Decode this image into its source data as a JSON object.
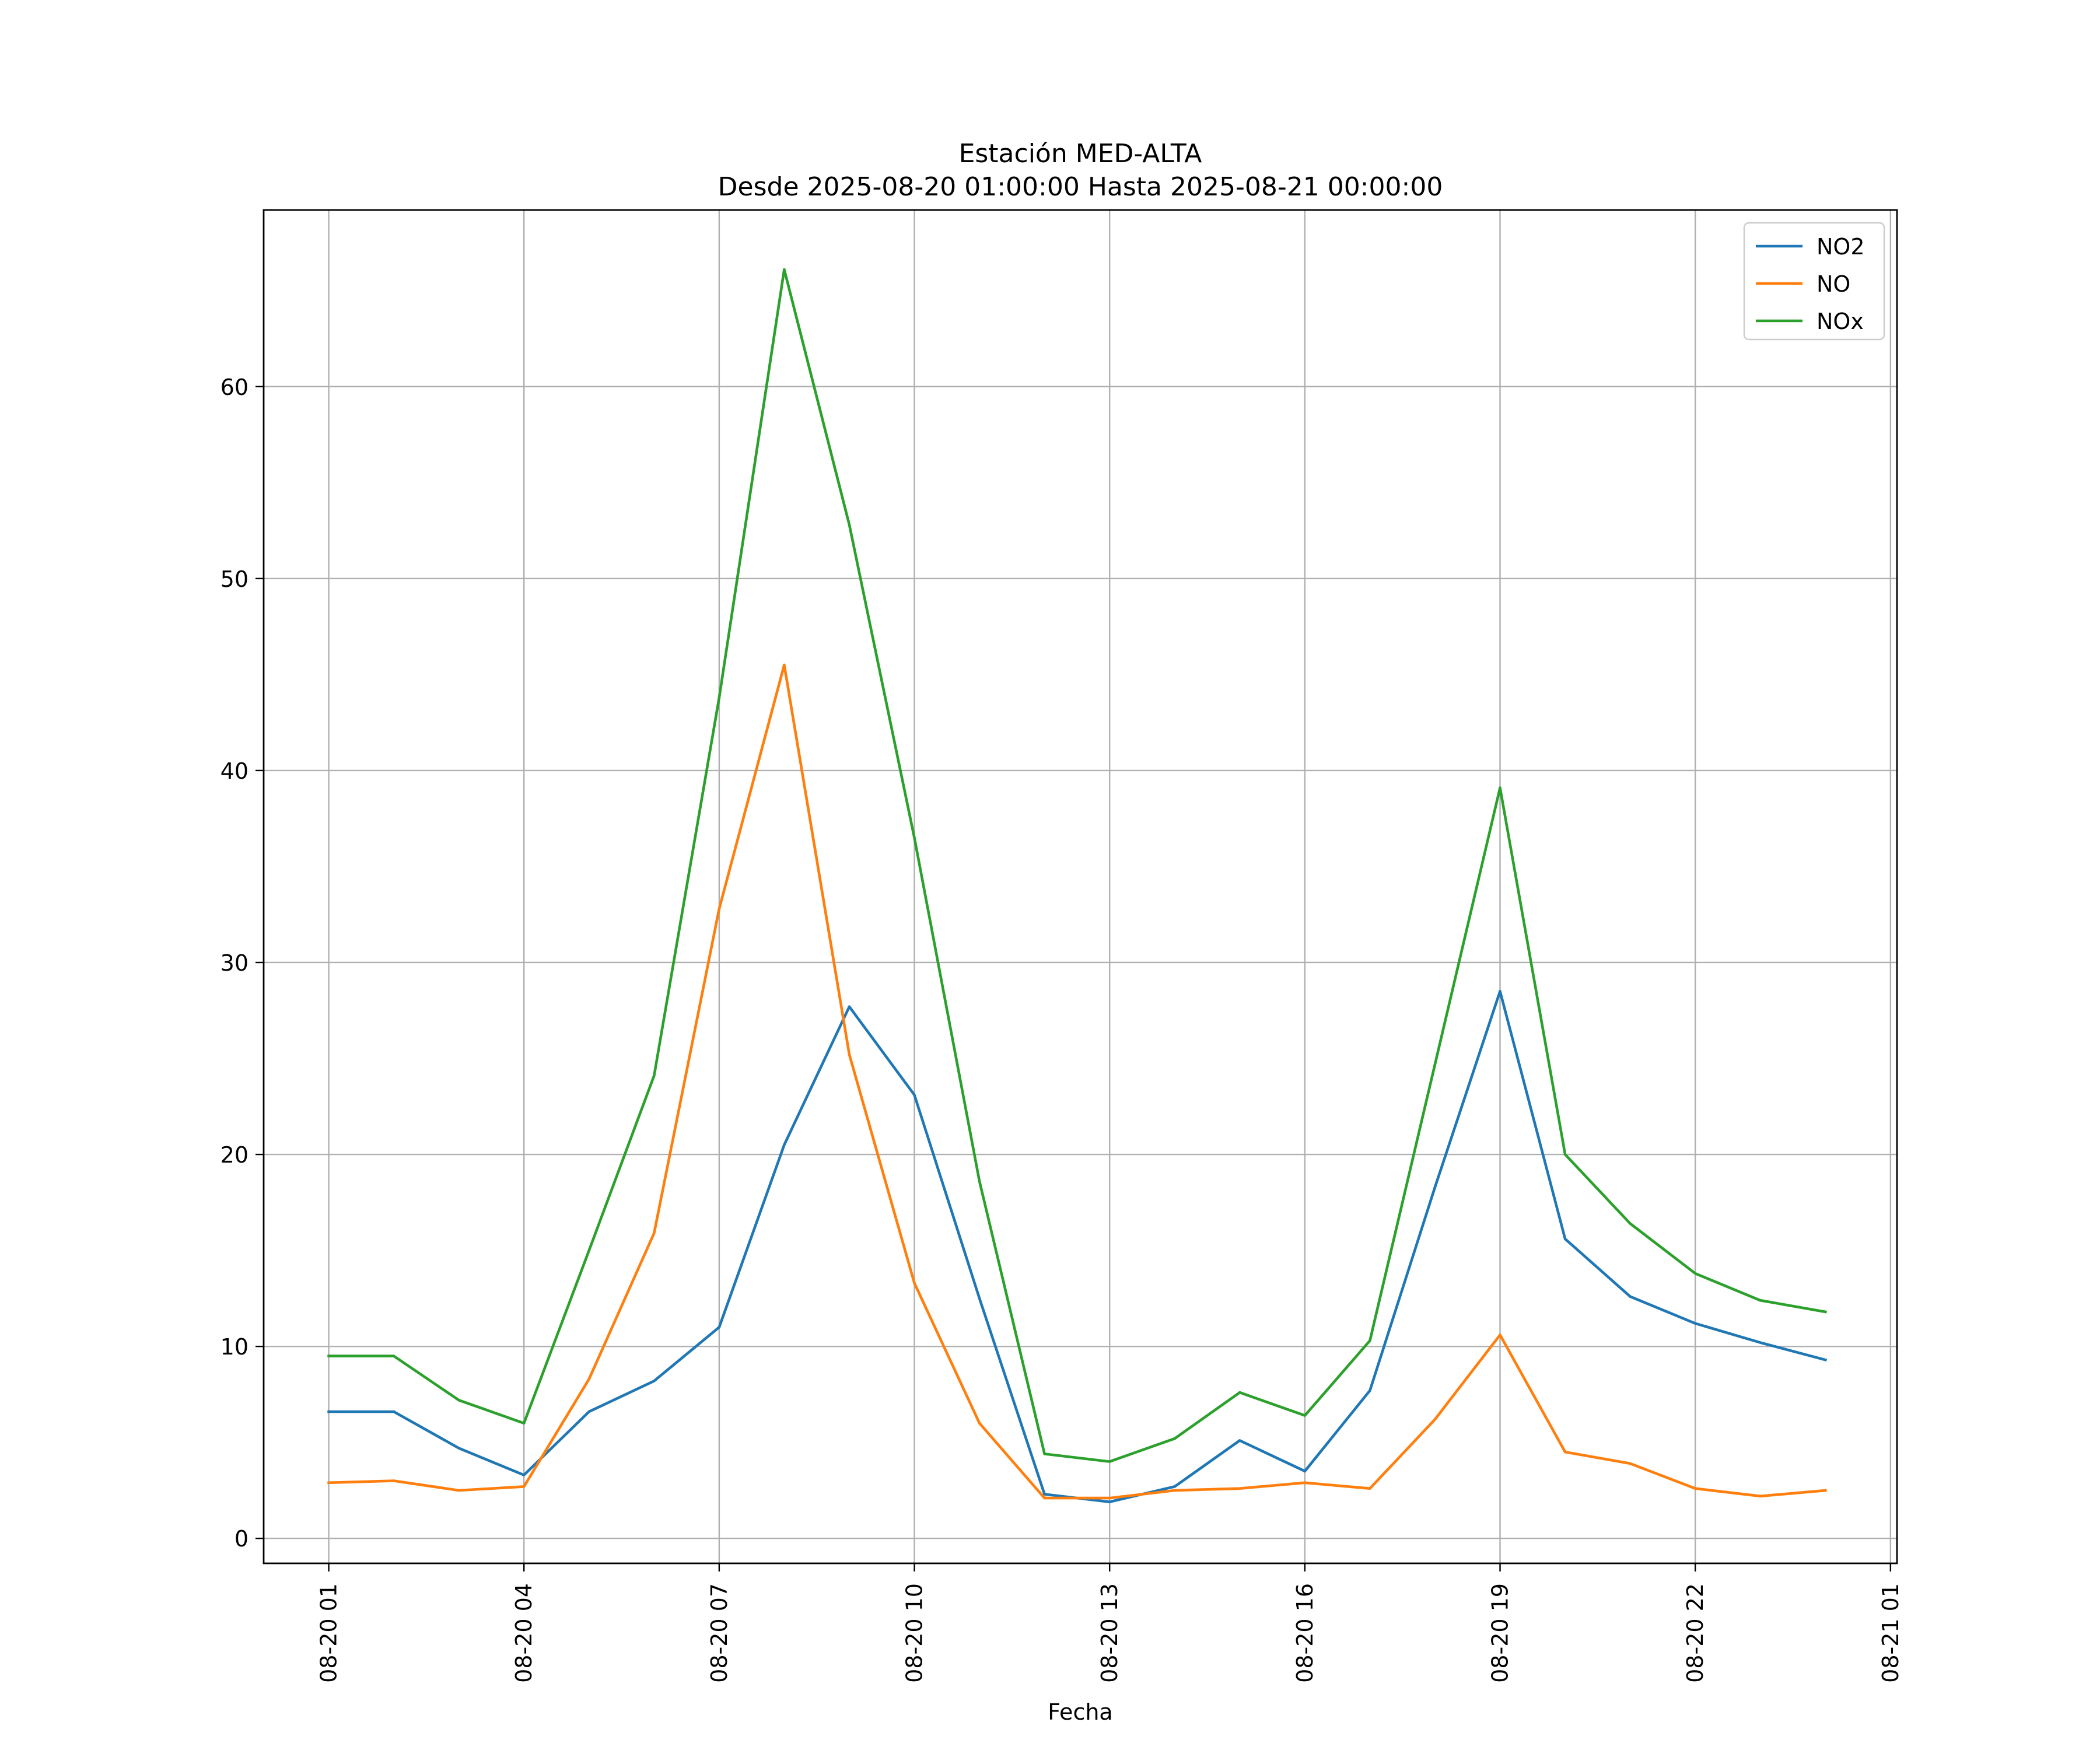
{
  "chart_data": {
    "type": "line",
    "title": "Estación MED-ALTA",
    "subtitle": "Desde 2025-08-20 01:00:00 Hasta 2025-08-21 00:00:00",
    "xlabel": "Fecha",
    "ylabel": "",
    "x": [
      "08-20 01",
      "08-20 02",
      "08-20 03",
      "08-20 04",
      "08-20 05",
      "08-20 06",
      "08-20 07",
      "08-20 08",
      "08-20 09",
      "08-20 10",
      "08-20 11",
      "08-20 12",
      "08-20 13",
      "08-20 14",
      "08-20 15",
      "08-20 16",
      "08-20 17",
      "08-20 18",
      "08-20 19",
      "08-20 20",
      "08-20 21",
      "08-20 22",
      "08-20 23",
      "08-21 00"
    ],
    "xticks": [
      "08-20 01",
      "08-20 04",
      "08-20 07",
      "08-20 10",
      "08-20 13",
      "08-20 16",
      "08-20 19",
      "08-20 22",
      "08-21 01"
    ],
    "xlim": [
      "08-20 00:00",
      "08-21 01:06"
    ],
    "ylim": [
      -1.3,
      69.2
    ],
    "yticks": [
      0,
      10,
      20,
      30,
      40,
      50,
      60
    ],
    "grid": true,
    "legend": "top-right",
    "series": [
      {
        "name": "NO2",
        "color": "#1f77b4",
        "values": [
          6.6,
          6.6,
          4.7,
          3.3,
          6.6,
          8.2,
          11.0,
          20.5,
          27.7,
          23.1,
          12.5,
          2.3,
          1.9,
          2.7,
          5.1,
          3.5,
          7.7,
          18.3,
          28.5,
          15.6,
          12.6,
          11.2,
          10.2,
          9.3
        ]
      },
      {
        "name": "NO",
        "color": "#ff7f0e",
        "values": [
          2.9,
          3.0,
          2.5,
          2.7,
          8.3,
          15.9,
          32.8,
          45.5,
          25.2,
          13.3,
          6.0,
          2.1,
          2.1,
          2.5,
          2.6,
          2.9,
          2.6,
          6.2,
          10.6,
          4.5,
          3.9,
          2.6,
          2.2,
          2.5
        ]
      },
      {
        "name": "NOx",
        "color": "#2ca02c",
        "values": [
          9.5,
          9.5,
          7.2,
          6.0,
          15.0,
          24.1,
          43.8,
          66.1,
          52.8,
          36.5,
          18.6,
          4.4,
          4.0,
          5.2,
          7.6,
          6.4,
          10.3,
          24.7,
          39.1,
          20.0,
          16.4,
          13.8,
          12.4,
          11.8
        ]
      }
    ]
  }
}
